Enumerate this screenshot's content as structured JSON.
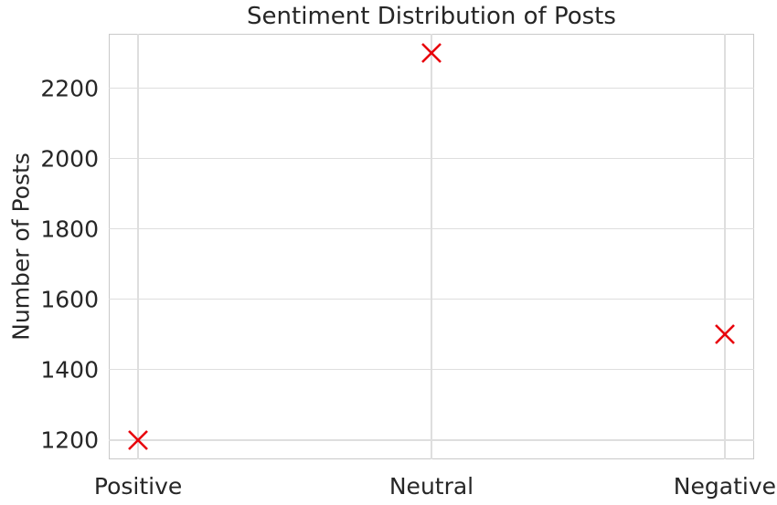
{
  "chart_data": {
    "type": "scatter",
    "title": "Sentiment Distribution of Posts",
    "xlabel": "",
    "ylabel": "Number of Posts",
    "categories": [
      "Positive",
      "Neutral",
      "Negative"
    ],
    "series": [
      {
        "name": "posts",
        "values": [
          1200,
          2300,
          1500
        ]
      }
    ],
    "yticks": [
      1200,
      1400,
      1600,
      1800,
      2000,
      2200
    ],
    "ylim": [
      1145,
      2355
    ],
    "xlim": [
      -0.1,
      2.1
    ],
    "grid": true,
    "legend": false,
    "marker": "x",
    "colors": {
      "marker": "#e8000b",
      "grid": "#dedede",
      "spine": "#c9c9c9",
      "text": "#262626",
      "background": "#ffffff"
    }
  }
}
